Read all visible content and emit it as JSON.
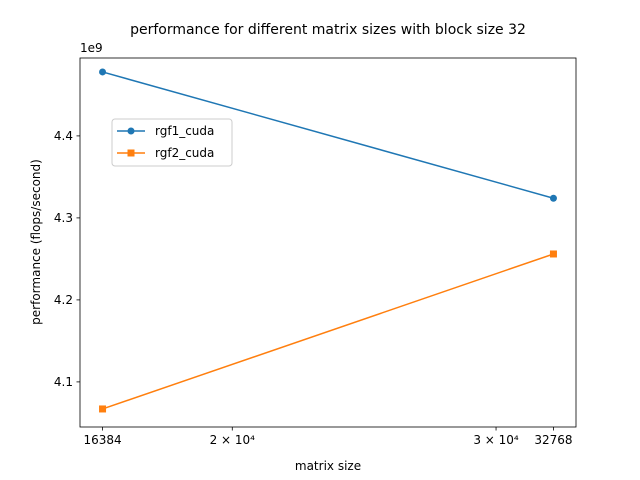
{
  "chart_data": {
    "type": "line",
    "title": "performance for different matrix sizes with block size 32",
    "xlabel": "matrix size",
    "ylabel": "performance (flops/second)",
    "x_scale": "log",
    "x": [
      16384,
      32768
    ],
    "xlim": [
      16384,
      32768
    ],
    "x_ticks": [
      {
        "value": 16384,
        "label": "16384"
      },
      {
        "value": 20000,
        "label": "2 × 10⁴"
      },
      {
        "value": 30000,
        "label": "3 × 10⁴"
      },
      {
        "value": 32768,
        "label": "32768"
      }
    ],
    "y_offset_label": "1e9",
    "y_multiplier": 1000000000,
    "ylim": [
      4.045,
      4.495
    ],
    "y_ticks": [
      {
        "value": 4.1,
        "label": "4.1"
      },
      {
        "value": 4.2,
        "label": "4.2"
      },
      {
        "value": 4.3,
        "label": "4.3"
      },
      {
        "value": 4.4,
        "label": "4.4"
      }
    ],
    "legend_position": "upper-left",
    "grid": false,
    "series": [
      {
        "name": "rgf1_cuda",
        "values": [
          4.478,
          4.324
        ],
        "color": "#1f77b4",
        "marker": "circle"
      },
      {
        "name": "rgf2_cuda",
        "values": [
          4.067,
          4.256
        ],
        "color": "#ff7f0e",
        "marker": "square"
      }
    ]
  }
}
